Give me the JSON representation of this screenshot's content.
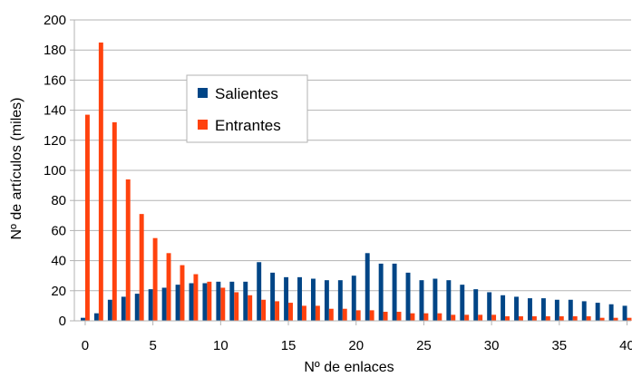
{
  "chart_data": {
    "type": "bar",
    "xlabel": "Nº de enlaces",
    "ylabel": "Nº de artículos (miles)",
    "ylim": [
      0,
      200
    ],
    "xlim": [
      -0.8,
      40.3
    ],
    "yticks": [
      0,
      20,
      40,
      60,
      80,
      100,
      120,
      140,
      160,
      180,
      200
    ],
    "xticks": [
      0,
      5,
      10,
      15,
      20,
      25,
      30,
      35,
      40
    ],
    "grid": "horizontal",
    "legend_position": "upper-left-center",
    "x": [
      0,
      1,
      2,
      3,
      4,
      5,
      6,
      7,
      8,
      9,
      10,
      11,
      12,
      13,
      14,
      15,
      16,
      17,
      18,
      19,
      20,
      21,
      22,
      23,
      24,
      25,
      26,
      27,
      28,
      29,
      30,
      31,
      32,
      33,
      34,
      35,
      36,
      37,
      38,
      39,
      40
    ],
    "series": [
      {
        "name": "Salientes",
        "color": "#004586",
        "values": [
          2,
          5,
          14,
          16,
          18,
          21,
          22,
          24,
          25,
          25,
          26,
          26,
          26,
          39,
          32,
          29,
          29,
          28,
          27,
          27,
          30,
          45,
          38,
          38,
          32,
          27,
          28,
          27,
          24,
          21,
          19,
          17,
          16,
          15,
          15,
          14,
          14,
          13,
          12,
          11,
          10
        ]
      },
      {
        "name": "Entrantes",
        "color": "#ff420e",
        "values": [
          137,
          185,
          132,
          94,
          71,
          55,
          45,
          37,
          31,
          26,
          22,
          19,
          17,
          14,
          13,
          12,
          10,
          10,
          8,
          8,
          7,
          7,
          6,
          6,
          5,
          5,
          5,
          4,
          4,
          4,
          4,
          3,
          3,
          3,
          3,
          3,
          3,
          3,
          2,
          2,
          2
        ]
      }
    ]
  }
}
